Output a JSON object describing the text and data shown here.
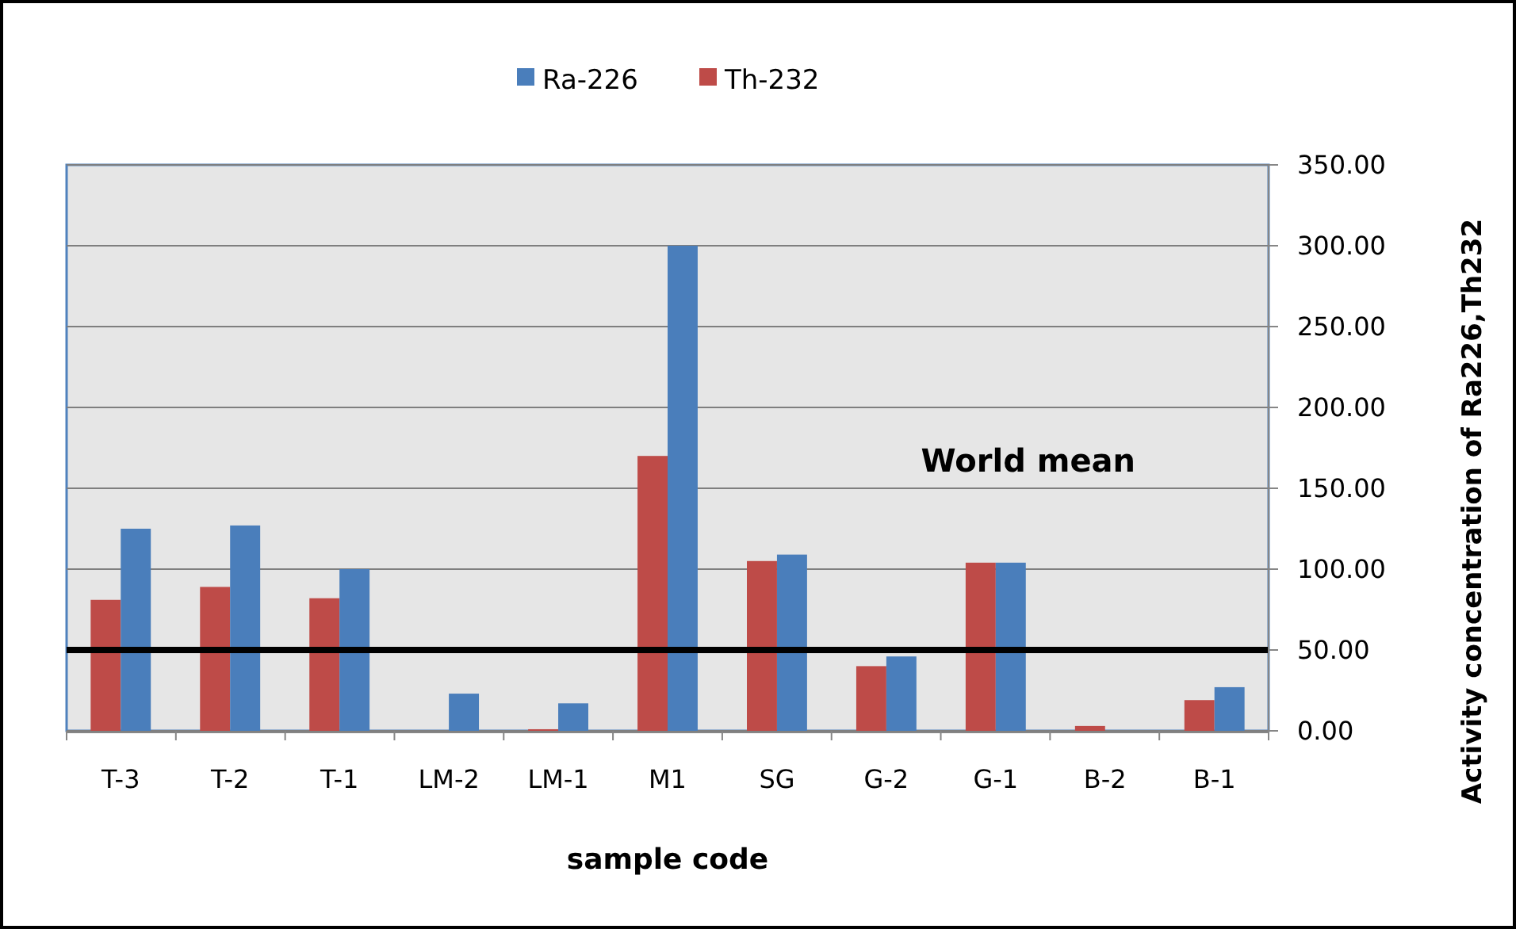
{
  "chart_data": {
    "type": "bar",
    "xlabel": "sample code",
    "ylabel": "Activity concentration of Ra226,Th232",
    "categories": [
      "T-3",
      "T-2",
      "T-1",
      "LM-2",
      "LM-1",
      "M1",
      "SG",
      "G-2",
      "G-1",
      "B-2",
      "B-1"
    ],
    "series": [
      {
        "name": "Th-232",
        "color": "#be4b48",
        "values": [
          81,
          89,
          82,
          0,
          1,
          170,
          105,
          40,
          104,
          3,
          19
        ]
      },
      {
        "name": "Ra-226",
        "color": "#4a7ebb",
        "values": [
          125,
          127,
          100,
          23,
          17,
          300,
          109,
          46,
          104,
          0,
          27
        ]
      }
    ],
    "ylim": [
      0,
      350
    ],
    "yticks": [
      {
        "value": 0,
        "label": "0.00"
      },
      {
        "value": 50,
        "label": "50.00"
      },
      {
        "value": 100,
        "label": "100.00"
      },
      {
        "value": 150,
        "label": "150.00"
      },
      {
        "value": 200,
        "label": "200.00"
      },
      {
        "value": 250,
        "label": "250.00"
      },
      {
        "value": 300,
        "label": "300.00"
      },
      {
        "value": 350,
        "label": "350.00"
      }
    ],
    "ref_lines": [
      {
        "axis": "y",
        "value": 50,
        "color": "#000000"
      }
    ],
    "annotations": [
      "World mean"
    ],
    "grid": "y",
    "legend": "top"
  }
}
